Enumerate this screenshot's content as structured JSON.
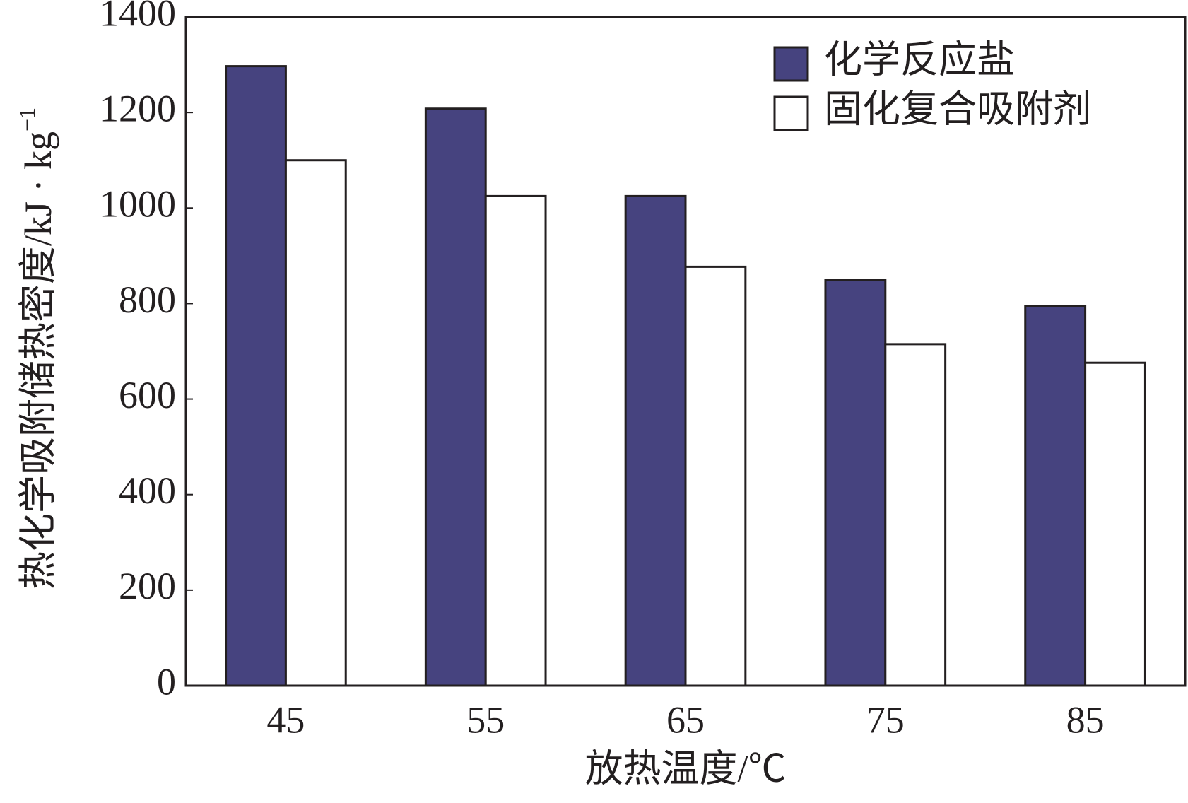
{
  "chart_data": {
    "type": "bar",
    "xlabel": "放热温度/℃",
    "ylabel": {
      "text": "热化学吸附储热密度/kJ · kg",
      "superscript": "−1"
    },
    "categories": [
      "45",
      "55",
      "65",
      "75",
      "85"
    ],
    "series": [
      {
        "name": "化学反应盐",
        "color": "#46437f",
        "values": [
          1297,
          1208,
          1025,
          850,
          795
        ]
      },
      {
        "name": "固化复合吸附剂",
        "color": "#ffffff",
        "values": [
          1100,
          1025,
          877,
          715,
          676
        ]
      }
    ],
    "ylim": [
      0,
      1400
    ],
    "yticks": [
      0,
      200,
      400,
      600,
      800,
      1000,
      1200,
      1400
    ],
    "legend": "upper right"
  }
}
